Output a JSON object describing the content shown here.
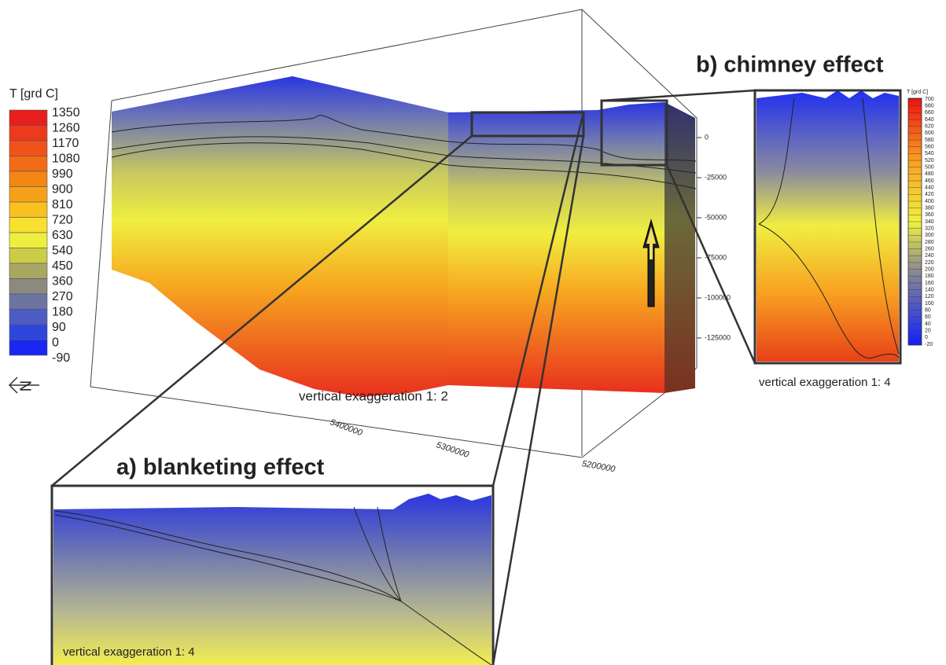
{
  "legend": {
    "title": "T [grd C]",
    "ticks": [
      1350,
      1260,
      1170,
      1080,
      990,
      900,
      810,
      720,
      630,
      540,
      450,
      360,
      270,
      180,
      90,
      0,
      -90
    ]
  },
  "depth_axis": {
    "ticks": [
      0,
      -25000,
      -50000,
      -75000,
      -100000,
      -125000
    ]
  },
  "northing_axis": {
    "ticks": [
      5400000,
      5300000,
      5200000
    ]
  },
  "main_view": {
    "note": "vertical exaggeration 1: 2"
  },
  "compass": "N",
  "insets": [
    {
      "title": "a) blanketing effect",
      "note": "vertical exaggeration 1: 4"
    },
    {
      "title": "b) chimney effect",
      "note": "vertical exaggeration 1: 4",
      "legend": {
        "title": "T [grd C]",
        "ticks": [
          700,
          680,
          660,
          640,
          620,
          600,
          580,
          560,
          540,
          520,
          500,
          480,
          460,
          440,
          420,
          400,
          380,
          360,
          340,
          320,
          300,
          280,
          260,
          240,
          220,
          200,
          180,
          160,
          140,
          120,
          100,
          80,
          60,
          40,
          20,
          0,
          -20
        ]
      }
    }
  ]
}
